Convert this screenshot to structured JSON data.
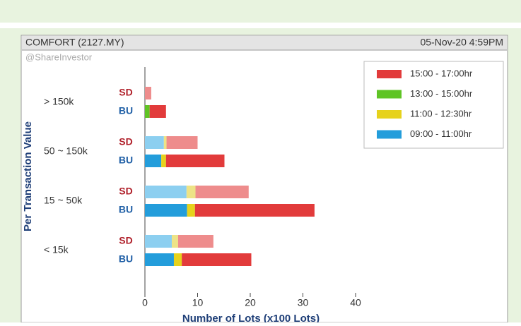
{
  "chart_data": {
    "type": "grouped-stacked-barh",
    "title": "COMFORT (2127.MY)",
    "timestamp": "05-Nov-20 4:59PM",
    "source": "@ShareInvestor",
    "y_label": "Per Transaction Value",
    "x_label": "Number of Lots (x100 Lots)",
    "categories": [
      "> 150k",
      "50 ~ 150k",
      "15 ~ 50k",
      "< 15k"
    ],
    "groups": [
      "SD",
      "BU"
    ],
    "group_colors": [
      "#b0202a",
      "#1f5fa6"
    ],
    "series": [
      {
        "name": "15:00 - 17:00hr",
        "color": "#e23b3b",
        "light_color": "#ee8c8c",
        "values": [
          [
            1.2,
            3.1
          ],
          [
            5.9,
            11.1
          ],
          [
            10.1,
            22.7
          ],
          [
            6.7,
            13.2
          ]
        ]
      },
      {
        "name": "13:00 - 15:00hr",
        "color": "#5fc425",
        "light_color": "#a8e07e",
        "values": [
          [
            0,
            0.9
          ],
          [
            0,
            0
          ],
          [
            0,
            0
          ],
          [
            0,
            0
          ]
        ]
      },
      {
        "name": "11:00 - 12:30hr",
        "color": "#e6d21c",
        "light_color": "#ede386",
        "values": [
          [
            0,
            0
          ],
          [
            0.5,
            0.9
          ],
          [
            1.7,
            1.5
          ],
          [
            1.2,
            1.5
          ]
        ]
      },
      {
        "name": "09:00 - 11:00hr",
        "color": "#239ddb",
        "light_color": "#8ccff0",
        "values": [
          [
            0,
            0
          ],
          [
            3.6,
            3.1
          ],
          [
            7.9,
            8.0
          ],
          [
            5.1,
            5.5
          ]
        ]
      }
    ],
    "xlim": [
      0,
      40
    ],
    "xticks": [
      0,
      10,
      20,
      30,
      40
    ],
    "legend": "upper right"
  }
}
